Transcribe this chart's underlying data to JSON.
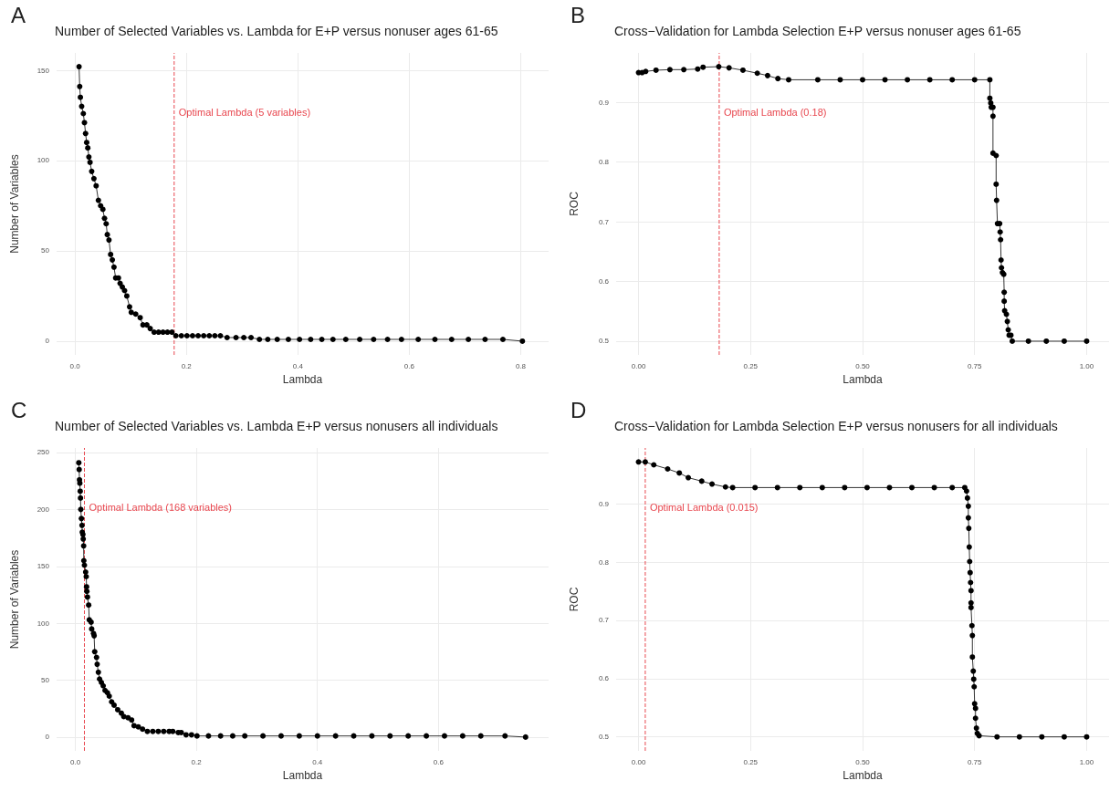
{
  "chart_data": [
    {
      "type": "line",
      "title": "Number of Selected Variables vs. Lambda for E+P versus nonuser ages 61-65",
      "xlabel": "Lambda",
      "ylabel": "Number of Variables",
      "annotations": [
        "A"
      ],
      "marker": "circle",
      "line_style": "solid",
      "grid": true,
      "x": [
        0.0073,
        0.0085,
        0.0097,
        0.012,
        0.015,
        0.017,
        0.019,
        0.021,
        0.023,
        0.025,
        0.027,
        0.03,
        0.034,
        0.038,
        0.042,
        0.046,
        0.05,
        0.053,
        0.056,
        0.058,
        0.061,
        0.064,
        0.067,
        0.07,
        0.073,
        0.078,
        0.081,
        0.085,
        0.089,
        0.093,
        0.098,
        0.101,
        0.109,
        0.117,
        0.122,
        0.129,
        0.135,
        0.142,
        0.15,
        0.158,
        0.166,
        0.174,
        0.181,
        0.191,
        0.201,
        0.211,
        0.221,
        0.231,
        0.241,
        0.251,
        0.261,
        0.273,
        0.289,
        0.303,
        0.316,
        0.331,
        0.346,
        0.363,
        0.383,
        0.403,
        0.423,
        0.443,
        0.463,
        0.486,
        0.511,
        0.536,
        0.561,
        0.586,
        0.616,
        0.646,
        0.676,
        0.706,
        0.736,
        0.768,
        0.803
      ],
      "series": [
        {
          "color": "#000000",
          "values": [
            152,
            141,
            135,
            130,
            126,
            121,
            115,
            110,
            107,
            102,
            99,
            94,
            90,
            86,
            78,
            75,
            73,
            68,
            65,
            59,
            56,
            48,
            45,
            41,
            35,
            35,
            32,
            30,
            28,
            25,
            19,
            16,
            15,
            13,
            9,
            9,
            7,
            5,
            5,
            5,
            5,
            5,
            3,
            3,
            3,
            3,
            3,
            3,
            3,
            3,
            3,
            2,
            2,
            2,
            2,
            1,
            1,
            1,
            1,
            1,
            1,
            1,
            1,
            1,
            1,
            1,
            1,
            1,
            1,
            1,
            1,
            1,
            1,
            1,
            0
          ]
        }
      ],
      "xlim": [
        -0.033,
        0.85
      ],
      "xticks": [
        {
          "value": 0,
          "label": "0.0"
        },
        0.2,
        0.4,
        0.6,
        0.8
      ],
      "ylim": [
        -7.6,
        159.6
      ],
      "yticks": [
        0,
        50,
        100,
        150
      ],
      "ref_lines": [
        {
          "axis": "x",
          "value": 0.178,
          "label": "Optimal Lambda (5 variables)",
          "color": "#e8474f",
          "line_style": "dashed"
        }
      ]
    },
    {
      "type": "line",
      "title": "Cross−Validation for Lambda Selection E+P versus nonuser ages 61-65",
      "xlabel": "Lambda",
      "ylabel": "ROC",
      "annotations": [
        "B"
      ],
      "marker": "circle",
      "line_style": "solid",
      "grid": true,
      "x": [
        0,
        0.008,
        0.016,
        0.039,
        0.07,
        0.101,
        0.132,
        0.144,
        0.179,
        0.202,
        0.233,
        0.265,
        0.288,
        0.311,
        0.335,
        0.4,
        0.45,
        0.5,
        0.55,
        0.6,
        0.65,
        0.7,
        0.75,
        0.784,
        0.784,
        0.786,
        0.787,
        0.791,
        0.791,
        0.791,
        0.798,
        0.798,
        0.799,
        0.801,
        0.806,
        0.807,
        0.808,
        0.809,
        0.81,
        0.812,
        0.815,
        0.816,
        0.816,
        0.817,
        0.821,
        0.823,
        0.825,
        0.827,
        0.831,
        0.834,
        0.87,
        0.91,
        0.95,
        1.0
      ],
      "series": [
        {
          "color": "#000000",
          "values": [
            0.95,
            0.95,
            0.952,
            0.954,
            0.955,
            0.955,
            0.956,
            0.959,
            0.96,
            0.958,
            0.954,
            0.949,
            0.945,
            0.94,
            0.938,
            0.938,
            0.938,
            0.938,
            0.938,
            0.938,
            0.938,
            0.938,
            0.938,
            0.938,
            0.907,
            0.899,
            0.892,
            0.892,
            0.877,
            0.815,
            0.811,
            0.763,
            0.736,
            0.697,
            0.697,
            0.683,
            0.67,
            0.636,
            0.623,
            0.615,
            0.612,
            0.582,
            0.567,
            0.551,
            0.545,
            0.533,
            0.519,
            0.51,
            0.51,
            0.5,
            0.5,
            0.5,
            0.5,
            0.5
          ]
        }
      ],
      "xlim": [
        -0.05,
        1.05
      ],
      "xticks": [
        {
          "value": 0,
          "label": "0.00"
        },
        0.25,
        {
          "value": 0.5,
          "label": "0.50"
        },
        0.75,
        {
          "value": 1,
          "label": "1.00"
        }
      ],
      "ylim": [
        0.477,
        0.983
      ],
      "yticks": [
        0.5,
        0.6,
        0.7,
        0.8,
        0.9
      ],
      "ref_lines": [
        {
          "axis": "x",
          "value": 0.18,
          "label": "Optimal Lambda (0.18)",
          "color": "#e8474f",
          "line_style": "dashed"
        }
      ]
    },
    {
      "type": "line",
      "title": "Number of Selected Variables vs. Lambda E+P versus nonusers all individuals",
      "xlabel": "Lambda",
      "ylabel": "Number of Variables",
      "annotations": [
        "C"
      ],
      "marker": "circle",
      "line_style": "solid",
      "grid": true,
      "x": [
        0.0057,
        0.0063,
        0.0068,
        0.0074,
        0.008,
        0.0085,
        0.009,
        0.01,
        0.011,
        0.0114,
        0.0125,
        0.013,
        0.0137,
        0.014,
        0.015,
        0.017,
        0.018,
        0.0185,
        0.019,
        0.02,
        0.022,
        0.023,
        0.026,
        0.027,
        0.03,
        0.031,
        0.032,
        0.035,
        0.036,
        0.038,
        0.04,
        0.043,
        0.046,
        0.049,
        0.053,
        0.056,
        0.06,
        0.064,
        0.07,
        0.076,
        0.08,
        0.087,
        0.093,
        0.097,
        0.104,
        0.111,
        0.119,
        0.128,
        0.137,
        0.146,
        0.155,
        0.161,
        0.17,
        0.175,
        0.183,
        0.192,
        0.201,
        0.22,
        0.24,
        0.26,
        0.28,
        0.31,
        0.34,
        0.37,
        0.4,
        0.43,
        0.46,
        0.49,
        0.52,
        0.55,
        0.58,
        0.61,
        0.64,
        0.67,
        0.71,
        0.744
      ],
      "series": [
        {
          "color": "#000000",
          "values": [
            241,
            235,
            226,
            223,
            216,
            210,
            200,
            192,
            186,
            180,
            178,
            174,
            168,
            155,
            151,
            145,
            141,
            132,
            128,
            123,
            116,
            103,
            101,
            95,
            91,
            89,
            75,
            70,
            64,
            57,
            51,
            48,
            45,
            41,
            39,
            36,
            31,
            28,
            24,
            21,
            18,
            17,
            15,
            10,
            9,
            7,
            5,
            5,
            5,
            5,
            5,
            5,
            4,
            4,
            2,
            2,
            1,
            1,
            1,
            1,
            1,
            1,
            1,
            1,
            1,
            1,
            1,
            1,
            1,
            1,
            1,
            1,
            1,
            1,
            1,
            0
          ]
        }
      ],
      "xlim": [
        -0.031,
        0.782
      ],
      "xticks": [
        {
          "value": 0,
          "label": "0.0"
        },
        0.2,
        0.4,
        0.6
      ],
      "ylim": [
        -12.1,
        254
      ],
      "yticks": [
        0,
        50,
        100,
        150,
        200,
        250
      ],
      "ref_lines": [
        {
          "axis": "x",
          "value": 0.015,
          "label": "Optimal Lambda (168 variables)",
          "color": "#e8474f",
          "line_style": "dashed"
        }
      ]
    },
    {
      "type": "line",
      "title": "Cross−Validation for Lambda Selection E+P versus nonusers for all individuals",
      "xlabel": "Lambda",
      "ylabel": "ROC",
      "annotations": [
        "D"
      ],
      "marker": "circle",
      "line_style": "solid",
      "grid": true,
      "x": [
        0,
        0.015,
        0.034,
        0.065,
        0.091,
        0.111,
        0.141,
        0.164,
        0.194,
        0.21,
        0.26,
        0.31,
        0.36,
        0.41,
        0.46,
        0.51,
        0.56,
        0.61,
        0.66,
        0.7,
        0.728,
        0.732,
        0.734,
        0.736,
        0.736,
        0.737,
        0.738,
        0.739,
        0.74,
        0.741,
        0.742,
        0.742,
        0.742,
        0.744,
        0.745,
        0.745,
        0.747,
        0.748,
        0.749,
        0.75,
        0.752,
        0.752,
        0.754,
        0.756,
        0.76,
        0.8,
        0.85,
        0.9,
        0.95,
        1.0
      ],
      "series": [
        {
          "color": "#000000",
          "values": [
            0.972,
            0.972,
            0.967,
            0.96,
            0.953,
            0.945,
            0.939,
            0.934,
            0.929,
            0.928,
            0.928,
            0.928,
            0.928,
            0.928,
            0.928,
            0.928,
            0.928,
            0.928,
            0.928,
            0.928,
            0.928,
            0.922,
            0.91,
            0.896,
            0.876,
            0.858,
            0.826,
            0.801,
            0.782,
            0.765,
            0.751,
            0.73,
            0.722,
            0.691,
            0.674,
            0.637,
            0.613,
            0.599,
            0.586,
            0.557,
            0.549,
            0.532,
            0.515,
            0.506,
            0.502,
            0.5,
            0.5,
            0.5,
            0.5,
            0.5
          ]
        }
      ],
      "xlim": [
        -0.05,
        1.05
      ],
      "xticks": [
        {
          "value": 0,
          "label": "0.00"
        },
        0.25,
        {
          "value": 0.5,
          "label": "0.50"
        },
        0.75,
        {
          "value": 1,
          "label": "1.00"
        }
      ],
      "ylim": [
        0.476,
        0.996
      ],
      "yticks": [
        0.5,
        0.6,
        0.7,
        0.8,
        0.9
      ],
      "ref_lines": [
        {
          "axis": "x",
          "value": 0.015,
          "label": "Optimal Lambda (0.015)",
          "color": "#e8474f",
          "line_style": "dashed"
        }
      ]
    }
  ]
}
